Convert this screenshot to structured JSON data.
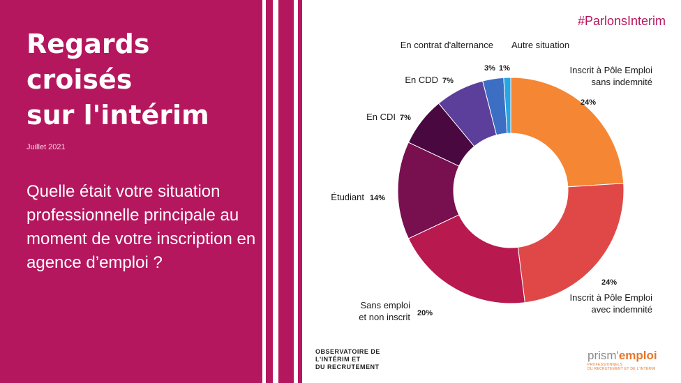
{
  "left": {
    "title_lines": [
      "Regards",
      "croisés",
      "sur l'intérim"
    ],
    "date": "Juillet 2021",
    "question": "Quelle était votre situation professionnelle principale au moment de votre inscription en agence d’emploi ?"
  },
  "hashtag": "#ParlonsInterim",
  "logos": {
    "observatoire_lines": [
      "OBSERVATOIRE DE",
      "L'INTÉRIM ET",
      "DU RECRUTEMENT"
    ],
    "prism_brand_a": "prism'",
    "prism_brand_b": "emploi",
    "prism_sub_lines": [
      "PROFESSIONNELS",
      "DU RECRUTEMENT ET DE L'INTÉRIM"
    ]
  },
  "colors": {
    "brand": "#b5175f"
  },
  "chart_data": {
    "type": "pie",
    "donut": true,
    "unit": "%",
    "slices": [
      {
        "label_lines": [
          "Inscrit à Pôle Emploi",
          "sans indemnité"
        ],
        "value": 24,
        "value_label": "24%",
        "color": "#f58634"
      },
      {
        "label_lines": [
          "Inscrit à  Pôle Emploi",
          "avec indemnité"
        ],
        "value": 24,
        "value_label": "24%",
        "color": "#e04848"
      },
      {
        "label_lines": [
          "Sans emploi",
          "et non inscrit"
        ],
        "value": 20,
        "value_label": "20%",
        "color": "#b8194e"
      },
      {
        "label_lines": [
          "Étudiant"
        ],
        "value": 14,
        "value_label": "14%",
        "color": "#780f4f"
      },
      {
        "label_lines": [
          "En CDI"
        ],
        "value": 7,
        "value_label": "7%",
        "color": "#4a0840"
      },
      {
        "label_lines": [
          "En CDD"
        ],
        "value": 7,
        "value_label": "7%",
        "color": "#5c3f9a"
      },
      {
        "label_lines": [
          "En contrat d'alternance"
        ],
        "value": 3,
        "value_label": "3%",
        "color": "#3c6ec3"
      },
      {
        "label_lines": [
          "Autre situation"
        ],
        "value": 1,
        "value_label": "1%",
        "color": "#2aa5e3"
      }
    ]
  }
}
